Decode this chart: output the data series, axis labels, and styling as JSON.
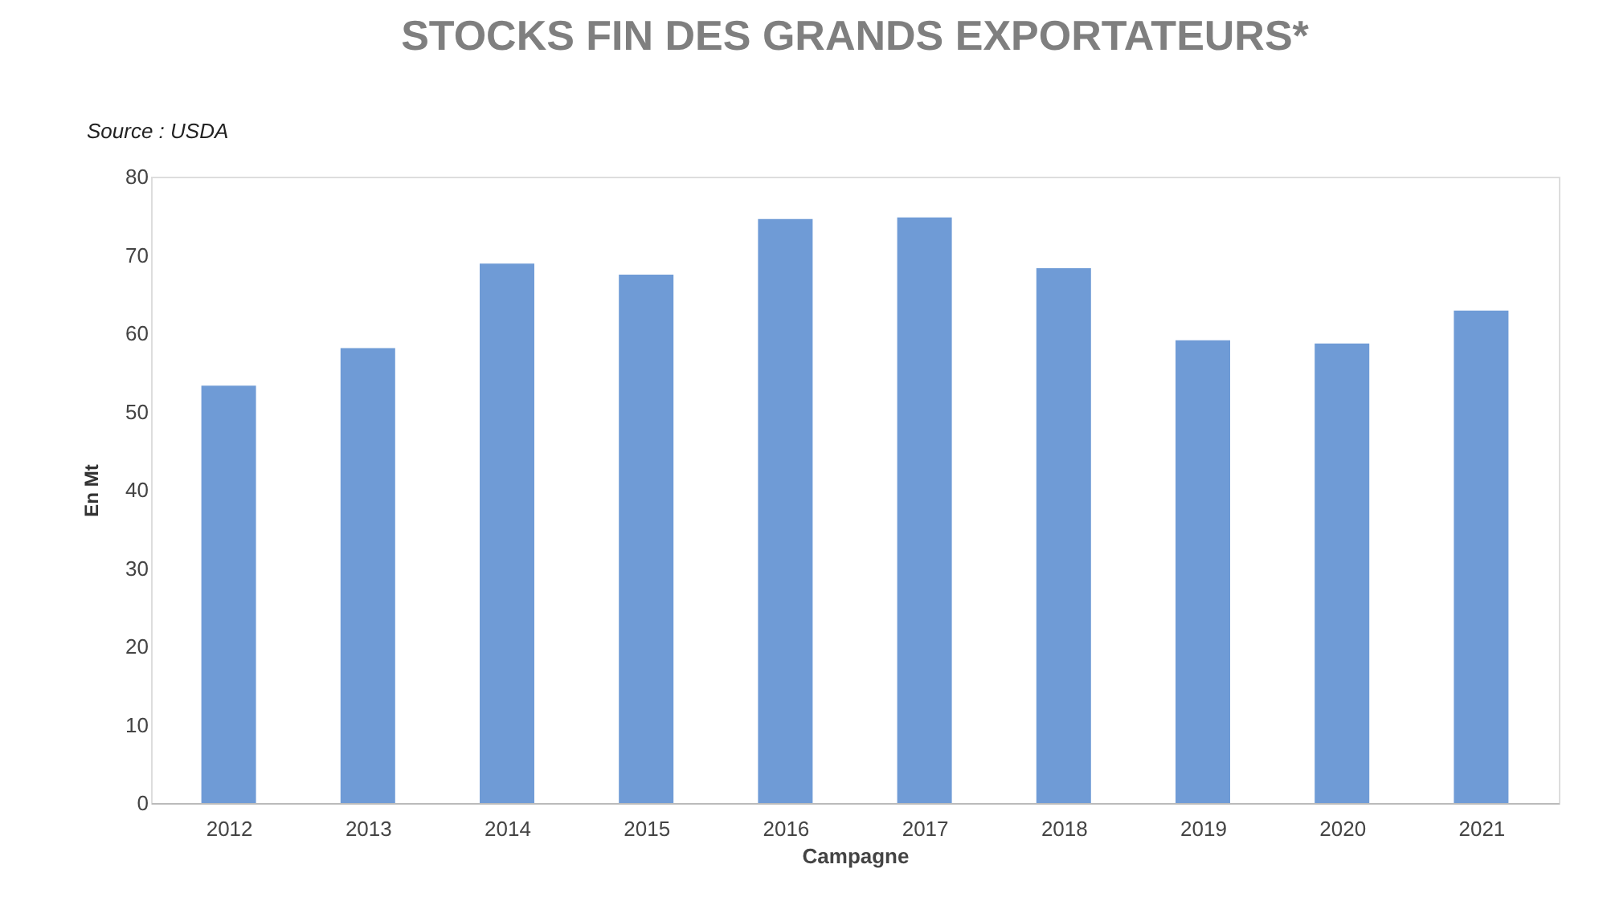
{
  "chart_data": {
    "type": "bar",
    "title": "STOCKS FIN DES GRANDS EXPORTATEURS*",
    "xlabel": "Campagne",
    "ylabel": "En Mt",
    "annotations": [
      "Source : USDA"
    ],
    "categories": [
      "2012",
      "2013",
      "2014",
      "2015",
      "2016",
      "2017",
      "2018",
      "2019",
      "2020",
      "2021"
    ],
    "values": [
      53.3,
      58.1,
      68.9,
      67.5,
      74.6,
      74.8,
      68.3,
      59.1,
      58.7,
      62.9
    ],
    "color": "#6f9bd6",
    "ylim": [
      0,
      80
    ],
    "yticks": [
      0,
      10,
      20,
      30,
      40,
      50,
      60,
      70,
      80
    ],
    "grid": false
  }
}
